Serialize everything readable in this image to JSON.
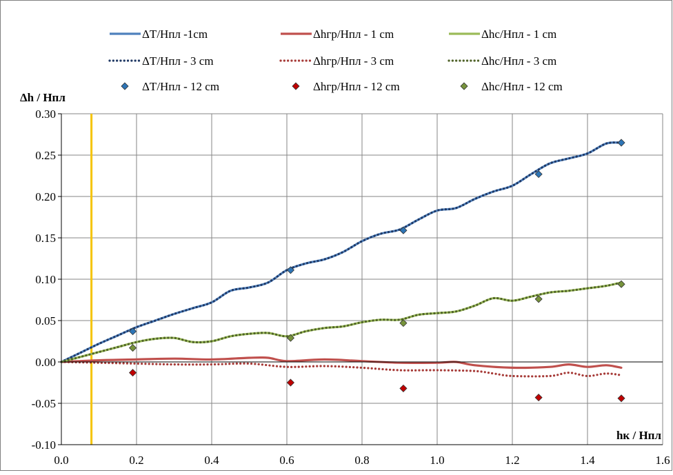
{
  "chart_data": {
    "type": "line",
    "title": "",
    "xlabel": "hк / Hпл",
    "ylabel": "Δh / Hпл",
    "xlim": [
      0.0,
      1.6
    ],
    "ylim": [
      -0.1,
      0.3
    ],
    "x_ticks": [
      "0.0",
      "0.2",
      "0.4",
      "0.6",
      "0.8",
      "1.0",
      "1.2",
      "1.4",
      "1.6"
    ],
    "y_ticks": [
      "-0.10",
      "-0.05",
      "0.00",
      "0.05",
      "0.10",
      "0.15",
      "0.20",
      "0.25",
      "0.30"
    ],
    "grid": "vertical and horizontal major gridlines",
    "legend_position": "top",
    "reference_line": {
      "x": 0.08,
      "color": "#f5c400"
    },
    "series": [
      {
        "name": "ΔT/Hпл -1cm",
        "style": "solid",
        "color": "#4f81bd",
        "x": [
          0.0,
          0.05,
          0.1,
          0.15,
          0.2,
          0.25,
          0.3,
          0.35,
          0.4,
          0.45,
          0.5,
          0.55,
          0.6,
          0.65,
          0.7,
          0.75,
          0.8,
          0.85,
          0.9,
          0.95,
          1.0,
          1.05,
          1.1,
          1.15,
          1.2,
          1.25,
          1.3,
          1.35,
          1.4,
          1.45,
          1.49
        ],
        "y": [
          0.0,
          0.011,
          0.022,
          0.032,
          0.042,
          0.05,
          0.058,
          0.065,
          0.072,
          0.086,
          0.09,
          0.096,
          0.111,
          0.119,
          0.124,
          0.133,
          0.146,
          0.155,
          0.16,
          0.172,
          0.183,
          0.186,
          0.197,
          0.206,
          0.213,
          0.227,
          0.24,
          0.246,
          0.252,
          0.264,
          0.265
        ]
      },
      {
        "name": "Δhгр/Hпл - 1 cm",
        "style": "solid",
        "color": "#c0504d",
        "x": [
          0.0,
          0.1,
          0.2,
          0.3,
          0.4,
          0.5,
          0.55,
          0.6,
          0.7,
          0.8,
          0.9,
          1.0,
          1.05,
          1.1,
          1.2,
          1.3,
          1.35,
          1.4,
          1.45,
          1.49
        ],
        "y": [
          0.0,
          0.002,
          0.003,
          0.004,
          0.003,
          0.005,
          0.005,
          0.001,
          0.003,
          0.001,
          -0.001,
          -0.001,
          0.0,
          -0.004,
          -0.007,
          -0.006,
          -0.003,
          -0.006,
          -0.004,
          -0.007
        ]
      },
      {
        "name": "Δhc/Hпл - 1 cm",
        "style": "solid",
        "color": "#9bbb59",
        "x": [
          0.0,
          0.05,
          0.1,
          0.15,
          0.2,
          0.25,
          0.3,
          0.35,
          0.4,
          0.45,
          0.5,
          0.55,
          0.6,
          0.65,
          0.7,
          0.75,
          0.8,
          0.85,
          0.9,
          0.95,
          1.0,
          1.05,
          1.1,
          1.15,
          1.2,
          1.25,
          1.3,
          1.35,
          1.4,
          1.45,
          1.49
        ],
        "y": [
          0.0,
          0.006,
          0.012,
          0.018,
          0.024,
          0.028,
          0.029,
          0.024,
          0.025,
          0.031,
          0.034,
          0.035,
          0.031,
          0.037,
          0.041,
          0.043,
          0.048,
          0.051,
          0.051,
          0.057,
          0.059,
          0.061,
          0.068,
          0.077,
          0.074,
          0.079,
          0.084,
          0.086,
          0.089,
          0.092,
          0.096
        ]
      },
      {
        "name": "ΔT/Hпл - 3 cm",
        "style": "dotted",
        "color": "#1f3864",
        "x": [
          0.0,
          0.05,
          0.1,
          0.15,
          0.2,
          0.25,
          0.3,
          0.35,
          0.4,
          0.45,
          0.5,
          0.55,
          0.6,
          0.65,
          0.7,
          0.75,
          0.8,
          0.85,
          0.9,
          0.95,
          1.0,
          1.05,
          1.1,
          1.15,
          1.2,
          1.25,
          1.3,
          1.35,
          1.4,
          1.45,
          1.49
        ],
        "y": [
          0.0,
          0.011,
          0.022,
          0.032,
          0.042,
          0.05,
          0.058,
          0.065,
          0.072,
          0.086,
          0.09,
          0.096,
          0.111,
          0.119,
          0.124,
          0.133,
          0.146,
          0.155,
          0.16,
          0.172,
          0.183,
          0.186,
          0.197,
          0.206,
          0.213,
          0.227,
          0.24,
          0.246,
          0.252,
          0.264,
          0.265
        ]
      },
      {
        "name": "Δhгр/Hпл - 3 cm",
        "style": "dotted",
        "color": "#a63a37",
        "x": [
          0.0,
          0.1,
          0.2,
          0.3,
          0.4,
          0.5,
          0.6,
          0.7,
          0.8,
          0.9,
          1.0,
          1.1,
          1.15,
          1.2,
          1.3,
          1.35,
          1.4,
          1.45,
          1.49
        ],
        "y": [
          0.0,
          -0.001,
          -0.002,
          -0.003,
          -0.003,
          -0.002,
          -0.006,
          -0.005,
          -0.007,
          -0.01,
          -0.01,
          -0.011,
          -0.014,
          -0.017,
          -0.017,
          -0.013,
          -0.017,
          -0.014,
          -0.016
        ]
      },
      {
        "name": "Δhc/Hпл - 3 cm",
        "style": "dotted",
        "color": "#4f6228",
        "x": [
          0.0,
          0.05,
          0.1,
          0.15,
          0.2,
          0.25,
          0.3,
          0.35,
          0.4,
          0.45,
          0.5,
          0.55,
          0.6,
          0.65,
          0.7,
          0.75,
          0.8,
          0.85,
          0.9,
          0.95,
          1.0,
          1.05,
          1.1,
          1.15,
          1.2,
          1.25,
          1.3,
          1.35,
          1.4,
          1.45,
          1.49
        ],
        "y": [
          0.0,
          0.006,
          0.012,
          0.018,
          0.024,
          0.028,
          0.029,
          0.024,
          0.025,
          0.031,
          0.034,
          0.035,
          0.031,
          0.037,
          0.041,
          0.043,
          0.048,
          0.051,
          0.051,
          0.057,
          0.059,
          0.061,
          0.068,
          0.077,
          0.074,
          0.079,
          0.084,
          0.086,
          0.089,
          0.092,
          0.096
        ]
      },
      {
        "name": "ΔT/Hпл - 12 cm",
        "style": "marker",
        "color": "#2e75b6",
        "x": [
          0.19,
          0.61,
          0.91,
          1.27,
          1.49
        ],
        "y": [
          0.037,
          0.111,
          0.159,
          0.227,
          0.265
        ]
      },
      {
        "name": "Δhгр/Hпл - 12 cm",
        "style": "marker",
        "color": "#c00000",
        "x": [
          0.19,
          0.61,
          0.91,
          1.27,
          1.49
        ],
        "y": [
          -0.013,
          -0.025,
          -0.032,
          -0.043,
          -0.044
        ]
      },
      {
        "name": "Δhc/Hпл - 12 cm",
        "style": "marker",
        "color": "#77933c",
        "x": [
          0.19,
          0.61,
          0.91,
          1.27,
          1.49
        ],
        "y": [
          0.017,
          0.029,
          0.047,
          0.076,
          0.094
        ]
      }
    ]
  }
}
